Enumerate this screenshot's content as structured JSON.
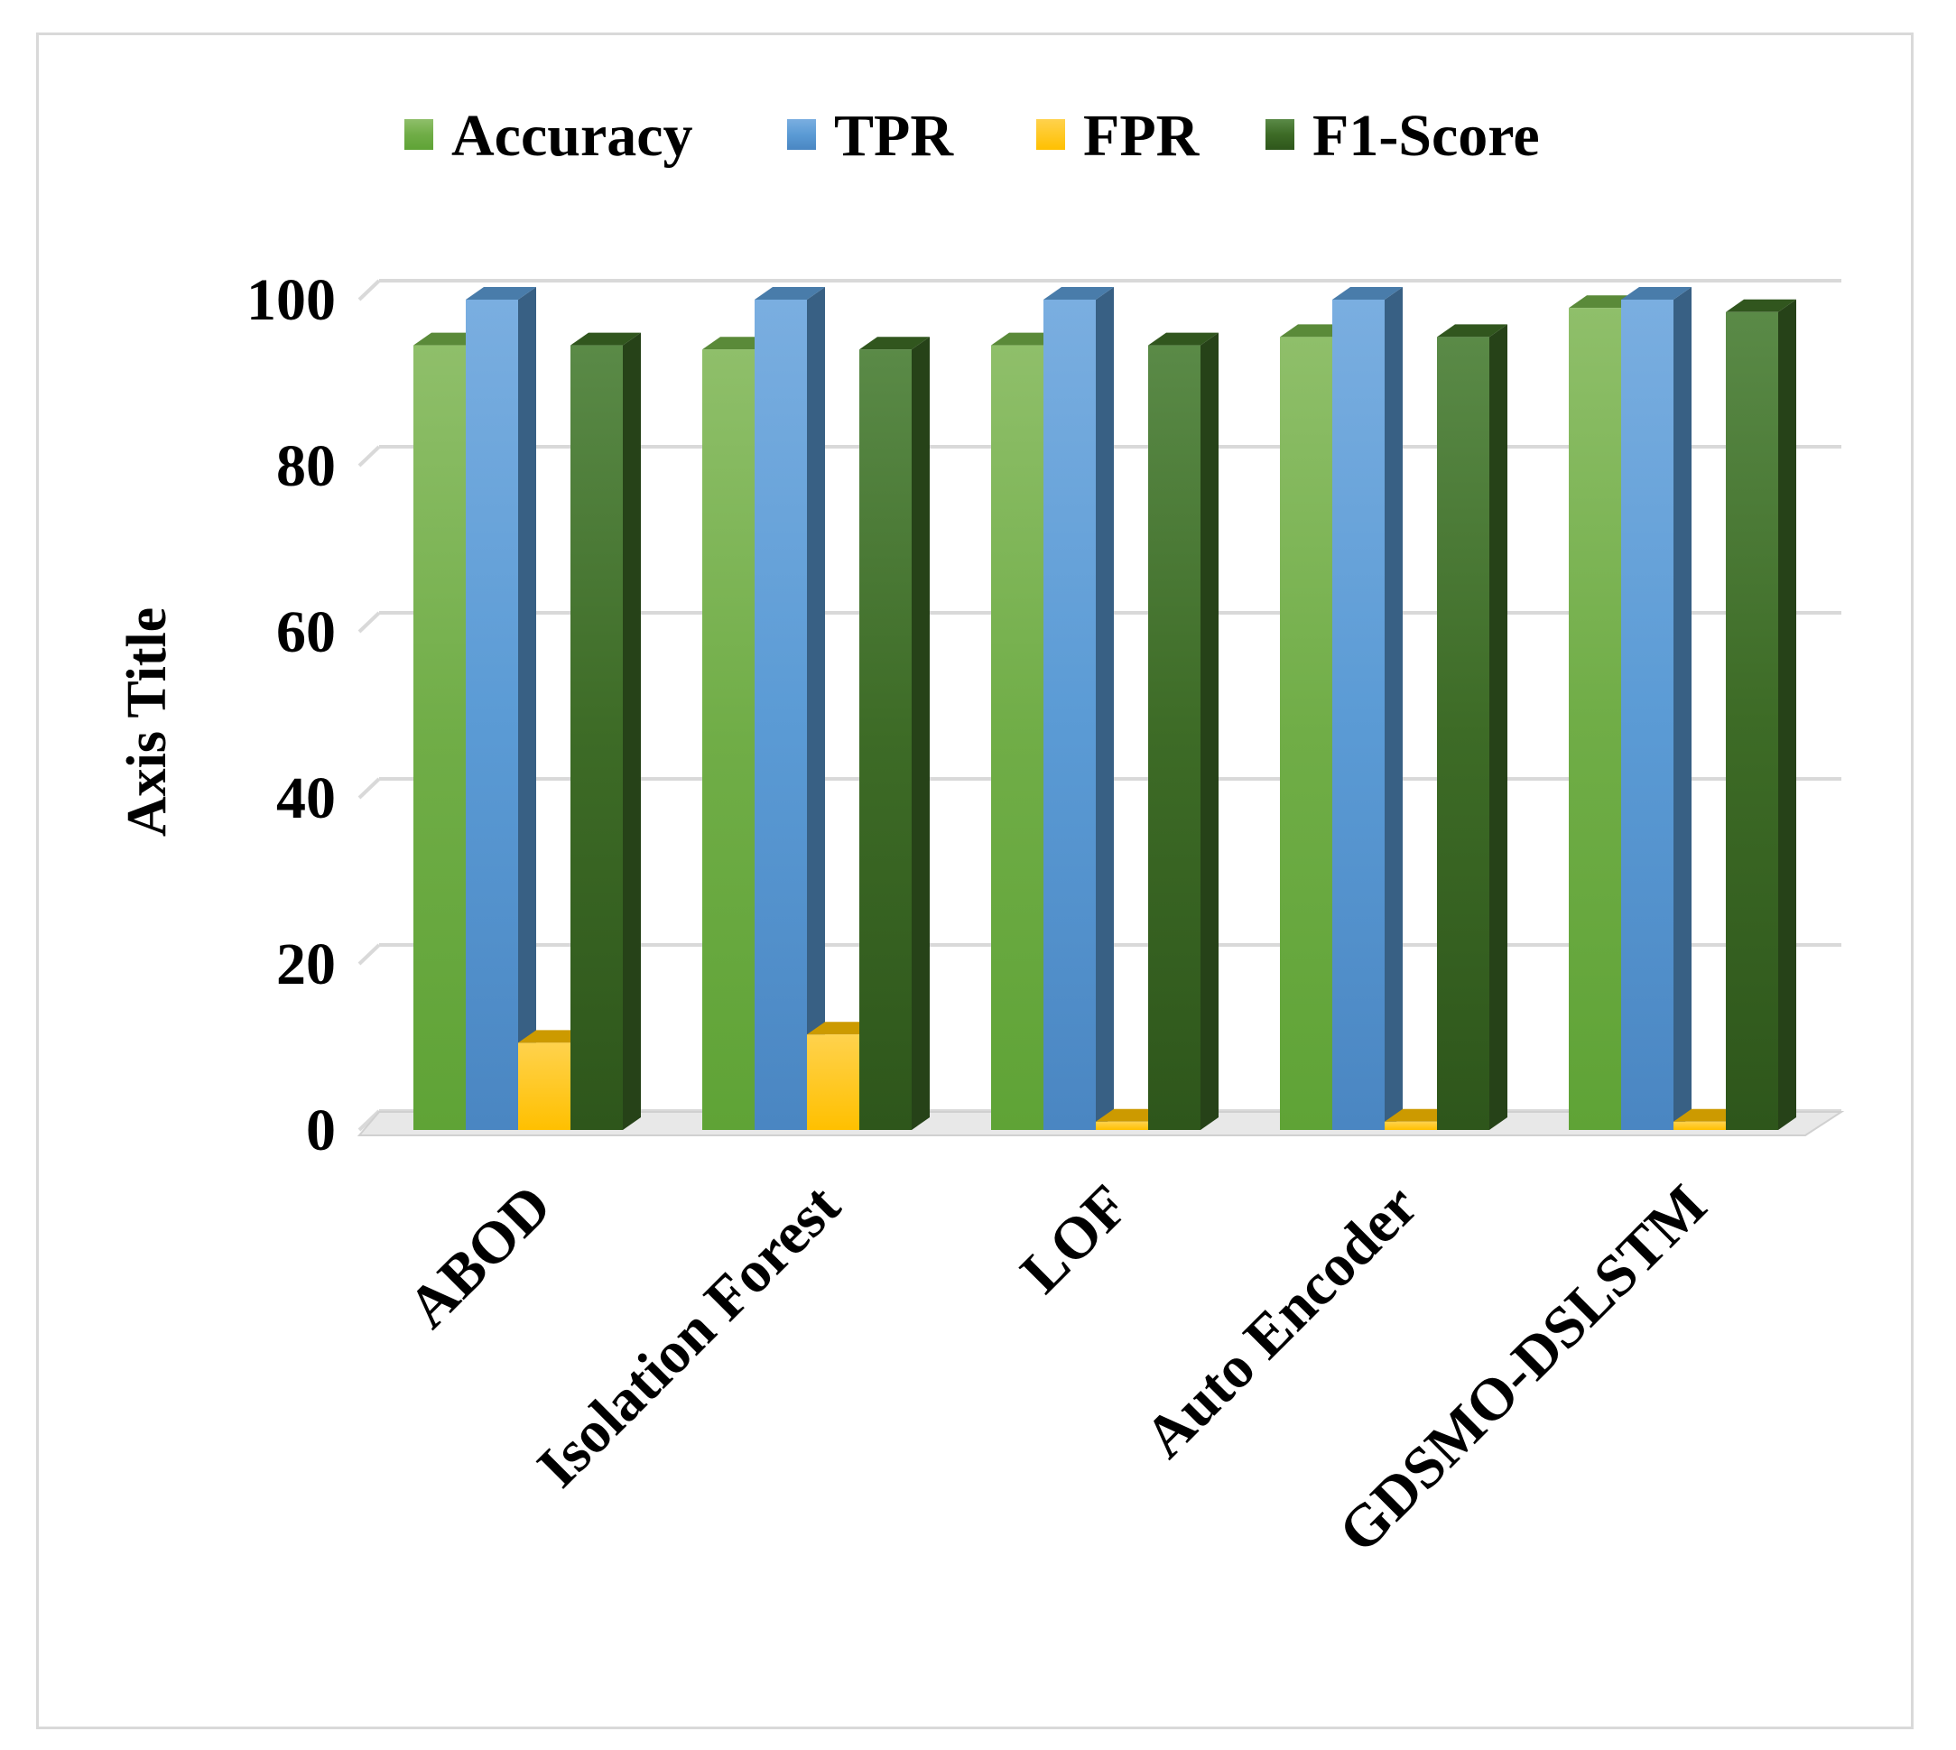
{
  "chart_data": {
    "type": "bar",
    "ylabel": "Axis Title",
    "ylim": [
      0,
      100
    ],
    "yticks": [
      "0",
      "20",
      "40",
      "60",
      "80",
      "100"
    ],
    "legend_position": "top",
    "grid": true,
    "categories": [
      "ABOD",
      "Isolation Forest",
      "LOF",
      "Auto Encoder",
      "GDSMO-DSLSTM"
    ],
    "series": [
      {
        "name": "Accuracy",
        "color": "#70ad47",
        "values": [
          94.5,
          94,
          94.5,
          95.5,
          99
        ]
      },
      {
        "name": "TPR",
        "color": "#5b9bd5",
        "values": [
          100,
          100,
          100,
          100,
          100
        ]
      },
      {
        "name": "FPR",
        "color": "#ffc000",
        "values": [
          10.5,
          11.5,
          1,
          1,
          1
        ]
      },
      {
        "name": "F1-Score",
        "color": "#3d6b26",
        "values": [
          94.5,
          94,
          94.5,
          95.5,
          98.5
        ]
      }
    ]
  }
}
